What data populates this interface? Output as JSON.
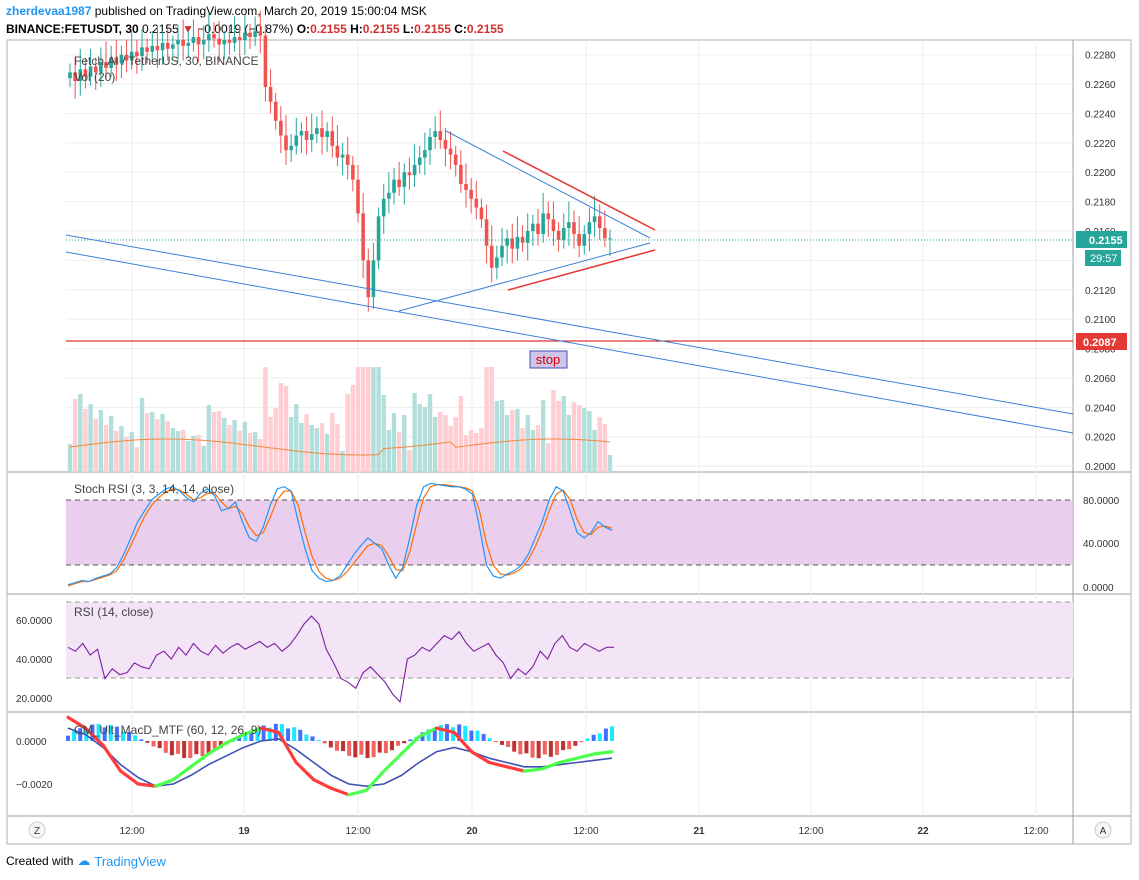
{
  "header": {
    "user": "zherdevaa1987",
    "published_text": "published on TradingView.com, March 20, 2019 15:00:04 MSK",
    "symbol": "BINANCE:FETUSDT, 30",
    "price": "0.2155",
    "change": "−0.0019 (−0.87%)",
    "o_label": "O:",
    "o": "0.2155",
    "h_label": "H:",
    "h": "0.2155",
    "l_label": "L:",
    "l": "0.2155",
    "c_label": "C:",
    "c": "0.2155"
  },
  "main_pane": {
    "title": "Fetch.AI / TetherUS, 30, BINANCE",
    "vol_label": "Vol (20)",
    "price_badge": "0.2155",
    "countdown_badge": "29:57",
    "stop_badge": "0.2087",
    "stop_label": "stop",
    "y_ticks": [
      "0.2280",
      "0.2260",
      "0.2240",
      "0.2220",
      "0.2200",
      "0.2180",
      "0.2160",
      "0.2140",
      "0.2120",
      "0.2100",
      "0.2080",
      "0.2060",
      "0.2040",
      "0.2020",
      "0.2000"
    ]
  },
  "stoch_pane": {
    "title": "Stoch RSI (3, 3, 14, 14, close)",
    "y_ticks": [
      "80.0000",
      "40.0000",
      "0.0000"
    ]
  },
  "rsi_pane": {
    "title": "RSI (14, close)",
    "y_ticks": [
      "60.0000",
      "40.0000",
      "20.0000"
    ]
  },
  "macd_pane": {
    "title": "CM_Ult_MacD_MTF (60, 12, 26, 9)",
    "y_ticks": [
      "0.0000",
      "−0.0020"
    ]
  },
  "time_axis": {
    "labels": [
      "12:00",
      "19",
      "12:00",
      "20",
      "12:00",
      "21",
      "12:00",
      "22",
      "12:00"
    ],
    "left_button": "Z",
    "right_button": "A"
  },
  "footer": {
    "created_with": "Created with",
    "brand": "TradingView"
  },
  "colors": {
    "up": "#26a69a",
    "down": "#ef5350",
    "blue_line": "#2962ff",
    "stop_line": "#d50000",
    "stoch_band": "#e1bee7"
  },
  "chart_data": {
    "type": "candlestick",
    "ylim": [
      0.2,
      0.228
    ],
    "stop_level": 0.2087,
    "last_price": 0.2155,
    "close_series": [
      0.2268,
      0.2262,
      0.227,
      0.2265,
      0.2272,
      0.2268,
      0.2275,
      0.2271,
      0.2278,
      0.2274,
      0.228,
      0.2276,
      0.2282,
      0.2279,
      0.2285,
      0.2282,
      0.2286,
      0.2283,
      0.2288,
      0.2284,
      0.2287,
      0.229,
      0.2286,
      0.2288,
      0.2292,
      0.2287,
      0.229,
      0.2294,
      0.2291,
      0.2287,
      0.229,
      0.2288,
      0.2292,
      0.229,
      0.2295,
      0.2292,
      0.2296,
      0.2293,
      0.2258,
      0.2248,
      0.2235,
      0.2225,
      0.2215,
      0.2218,
      0.2225,
      0.2228,
      0.2222,
      0.2226,
      0.223,
      0.2224,
      0.2228,
      0.2218,
      0.221,
      0.2212,
      0.2205,
      0.2195,
      0.2172,
      0.214,
      0.2115,
      0.214,
      0.217,
      0.2182,
      0.2186,
      0.2195,
      0.219,
      0.22,
      0.2198,
      0.2205,
      0.221,
      0.2215,
      0.2224,
      0.2228,
      0.2222,
      0.2216,
      0.2212,
      0.2205,
      0.2192,
      0.2188,
      0.2182,
      0.2176,
      0.2168,
      0.215,
      0.2135,
      0.2142,
      0.215,
      0.2155,
      0.2148,
      0.2156,
      0.2152,
      0.216,
      0.2165,
      0.2158,
      0.2172,
      0.2168,
      0.216,
      0.2154,
      0.2162,
      0.2166,
      0.2158,
      0.215,
      0.2158,
      0.2166,
      0.217,
      0.2162,
      0.2155,
      0.2155
    ],
    "stoch_k": [
      2,
      4,
      6,
      5,
      8,
      10,
      12,
      18,
      30,
      45,
      60,
      70,
      80,
      85,
      90,
      92,
      88,
      82,
      78,
      86,
      90,
      84,
      70,
      72,
      78,
      60,
      45,
      42,
      55,
      75,
      90,
      92,
      88,
      60,
      35,
      15,
      8,
      5,
      6,
      10,
      20,
      30,
      38,
      45,
      40,
      35,
      20,
      8,
      18,
      45,
      75,
      92,
      95,
      94,
      93,
      92,
      92,
      90,
      85,
      55,
      20,
      10,
      8,
      12,
      15,
      20,
      30,
      45,
      60,
      80,
      92,
      88,
      70,
      50,
      45,
      50,
      60,
      55,
      52
    ],
    "stoch_d": [
      1,
      3,
      5,
      5,
      7,
      9,
      11,
      15,
      25,
      38,
      52,
      65,
      75,
      82,
      87,
      90,
      89,
      85,
      80,
      82,
      86,
      86,
      78,
      72,
      74,
      68,
      55,
      47,
      50,
      64,
      80,
      88,
      88,
      75,
      50,
      28,
      14,
      8,
      6,
      8,
      14,
      22,
      30,
      38,
      40,
      38,
      28,
      16,
      15,
      32,
      58,
      82,
      92,
      94,
      94,
      93,
      92,
      91,
      88,
      70,
      40,
      20,
      12,
      11,
      13,
      17,
      25,
      37,
      52,
      70,
      85,
      89,
      80,
      62,
      50,
      48,
      55,
      56,
      54
    ],
    "rsi": [
      46,
      44,
      48,
      42,
      45,
      30,
      35,
      32,
      33,
      38,
      36,
      35,
      42,
      44,
      40,
      46,
      42,
      48,
      44,
      42,
      47,
      43,
      46,
      48,
      45,
      47,
      49,
      46,
      48,
      44,
      47,
      52,
      58,
      62,
      58,
      45,
      38,
      30,
      28,
      25,
      33,
      36,
      32,
      28,
      22,
      18,
      40,
      42,
      46,
      44,
      48,
      52,
      50,
      54,
      48,
      44,
      46,
      48,
      42,
      38,
      30,
      35,
      32,
      36,
      44,
      40,
      48,
      52,
      46,
      44,
      48,
      46,
      44,
      46,
      46
    ],
    "macd_line": [
      0.0011,
      0.0006,
      -0.0002,
      -0.0014,
      -0.002,
      -0.0021,
      -0.0018,
      -0.0012,
      -0.0006,
      -0.0001,
      0.0003,
      0.0006,
      0.0004,
      -0.001,
      -0.0018,
      -0.0022,
      -0.0025,
      -0.0023,
      -0.0014,
      -0.0006,
      0.0002,
      0.0006,
      0.0004,
      -0.0005,
      -0.001,
      -0.0012,
      -0.0014,
      -0.0013,
      -0.001,
      -0.0008,
      -0.0006,
      -0.0005
    ],
    "signal_line": [
      0.0006,
      0.0003,
      -0.0003,
      -0.0011,
      -0.0017,
      -0.0021,
      -0.002,
      -0.0016,
      -0.0011,
      -0.0007,
      -0.0003,
      0.0,
      0.0001,
      -0.0004,
      -0.001,
      -0.0016,
      -0.002,
      -0.0021,
      -0.002,
      -0.0016,
      -0.001,
      -0.0005,
      -0.0003,
      -0.0005,
      -0.0008,
      -0.001,
      -0.0012,
      -0.0012,
      -0.0011,
      -0.001,
      -0.0009,
      -0.0008
    ]
  }
}
